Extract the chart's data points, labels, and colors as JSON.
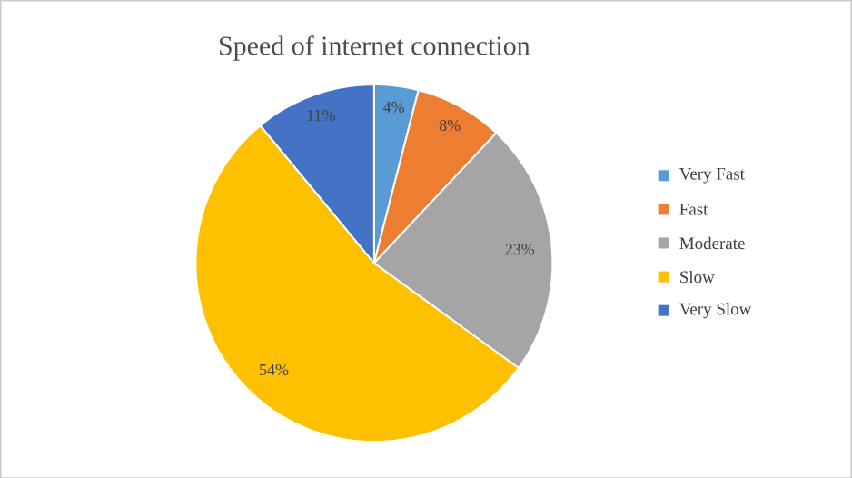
{
  "chart_data": {
    "type": "pie",
    "title": "Speed of internet connection",
    "categories": [
      "Very Fast",
      "Fast",
      "Moderate",
      "Slow",
      "Very Slow"
    ],
    "values": [
      4,
      8,
      23,
      54,
      11
    ],
    "colors": [
      "#5b9bd5",
      "#ed7d31",
      "#a5a5a5",
      "#ffc000",
      "#4472c4"
    ],
    "value_labels": [
      "4%",
      "8%",
      "23%",
      "54%",
      "11%"
    ],
    "legend": "right"
  }
}
